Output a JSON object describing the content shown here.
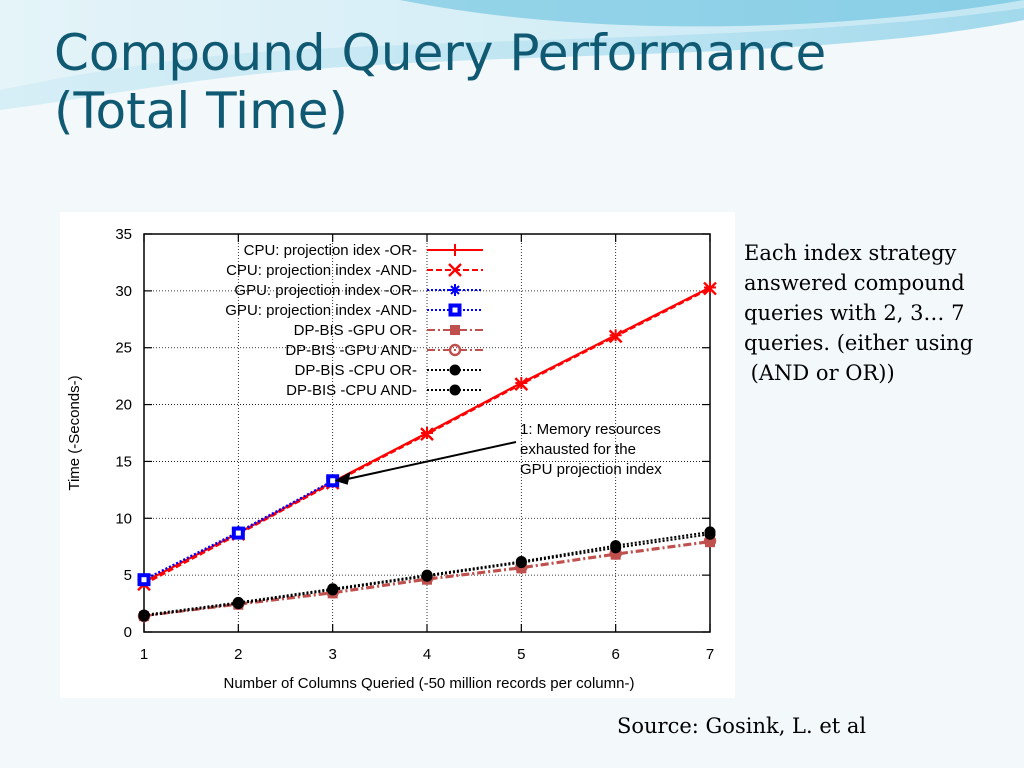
{
  "slide": {
    "title_line1": "Compound Query Performance",
    "title_line2": "(Total Time)",
    "note_lines": [
      "Each index strategy",
      "answered compound",
      "queries with 2, 3… 7",
      "queries. (either using",
      " (AND or OR))"
    ],
    "source": "Source: Gosink, L. et al"
  },
  "colors": {
    "title": "#0f5a72",
    "cpu": "#ff0000",
    "gpu": "#0000ff",
    "dpbis_gpu": "#c0504d",
    "dpbis_cpu": "#000000"
  },
  "chart_data": {
    "type": "line",
    "title": "",
    "xlabel": "Number of Columns Queried (-50 million records per column-)",
    "ylabel": "Time (-Seconds-)",
    "x": [
      1,
      2,
      3,
      4,
      5,
      6,
      7
    ],
    "xticks": [
      "1",
      "2",
      "3",
      "4",
      "5",
      "6",
      "7"
    ],
    "yticks": [
      "0",
      "5",
      "10",
      "15",
      "20",
      "25",
      "30",
      "35"
    ],
    "xlim": [
      1,
      7
    ],
    "ylim": [
      0,
      35
    ],
    "grid": true,
    "legend_position": "top-left",
    "annotation": {
      "lines": [
        "1: Memory resources",
        "exhausted for the",
        "GPU projection index"
      ],
      "points_to": [
        3,
        13.3
      ]
    },
    "series": [
      {
        "name": "CPU: projection idex -OR-",
        "x": [
          1,
          2,
          3,
          4,
          5,
          6,
          7
        ],
        "values": [
          4.4,
          8.7,
          13.2,
          17.5,
          21.9,
          26.1,
          30.3
        ],
        "color": "#ff0000",
        "marker": "plus",
        "dash": "solid"
      },
      {
        "name": "CPU: projection index -AND-",
        "x": [
          1,
          2,
          3,
          4,
          5,
          6,
          7
        ],
        "values": [
          4.2,
          8.6,
          13.1,
          17.4,
          21.8,
          26.0,
          30.2
        ],
        "color": "#ff0000",
        "marker": "x",
        "dash": "dashed"
      },
      {
        "name": "GPU: projection index -OR-",
        "x": [
          1,
          2,
          3
        ],
        "values": [
          4.6,
          8.8,
          13.3
        ],
        "color": "#0000ff",
        "marker": "star",
        "dash": "dotted"
      },
      {
        "name": "GPU: projection index -AND-",
        "x": [
          1,
          2,
          3
        ],
        "values": [
          4.6,
          8.7,
          13.3
        ],
        "color": "#0000ff",
        "marker": "square",
        "dash": "dotted"
      },
      {
        "name": "DP-BIS  -GPU OR-",
        "x": [
          1,
          2,
          3,
          4,
          5,
          6,
          7
        ],
        "values": [
          1.4,
          2.4,
          3.4,
          4.6,
          5.6,
          6.8,
          7.9
        ],
        "color": "#c0504d",
        "marker": "filled-square",
        "dash": "dashdot"
      },
      {
        "name": "DP-BIS -GPU AND-",
        "x": [
          1,
          2,
          3,
          4,
          5,
          6,
          7
        ],
        "values": [
          1.4,
          2.5,
          3.5,
          4.7,
          5.7,
          6.9,
          8.0
        ],
        "color": "#c0504d",
        "marker": "circle",
        "dash": "dashdot"
      },
      {
        "name": "DP-BIS  -CPU OR-",
        "x": [
          1,
          2,
          3,
          4,
          5,
          6,
          7
        ],
        "values": [
          1.5,
          2.6,
          3.8,
          5.0,
          6.2,
          7.6,
          8.8
        ],
        "color": "#000000",
        "marker": "filled-circle",
        "dash": "dotted"
      },
      {
        "name": "DP-BIS -CPU AND-",
        "x": [
          1,
          2,
          3,
          4,
          5,
          6,
          7
        ],
        "values": [
          1.4,
          2.5,
          3.7,
          4.9,
          6.1,
          7.4,
          8.6
        ],
        "color": "#000000",
        "marker": "filled-circle",
        "dash": "dotted"
      }
    ]
  }
}
